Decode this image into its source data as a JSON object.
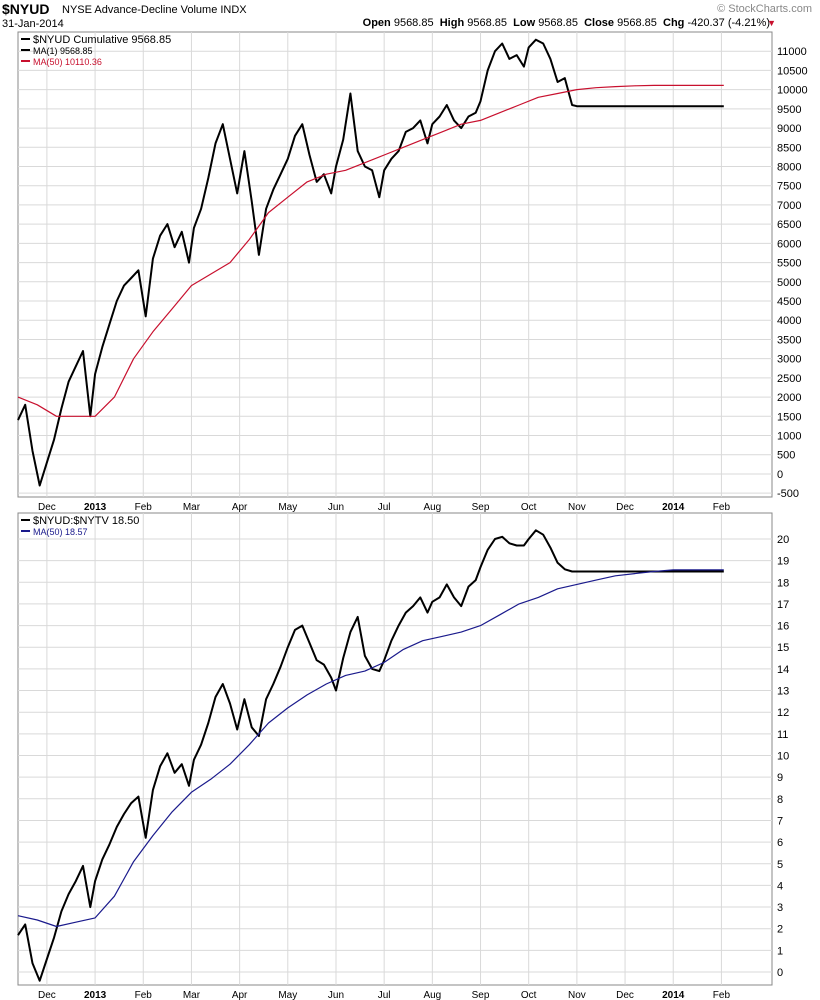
{
  "header": {
    "symbol": "$NYUD",
    "title": "NYSE Advance-Decline Volume  INDX",
    "date": "31-Jan-2014",
    "brand": "© StockCharts.com",
    "open_label": "Open",
    "open": "9568.85",
    "high_label": "High",
    "high": "9568.85",
    "low_label": "Low",
    "low": "9568.85",
    "close_label": "Close",
    "close": "9568.85",
    "chg_label": "Chg",
    "chg": "-420.37 (-4.21%)",
    "chg_icon": "down-triangle-icon"
  },
  "colors": {
    "price": "#000000",
    "ma_top": "#c8102e",
    "ma_bottom": "#1a1a8c",
    "grid": "#d9d9d9"
  },
  "chart_data": [
    {
      "type": "line",
      "legend": [
        "$NYUD Cumulative 9568.85",
        "MA(1) 9568.85",
        "MA(50) 10110.36"
      ],
      "x_tick_labels": [
        "Dec",
        "2013",
        "Feb",
        "Mar",
        "Apr",
        "May",
        "Jun",
        "Jul",
        "Aug",
        "Sep",
        "Oct",
        "Nov",
        "Dec",
        "2014",
        "Feb"
      ],
      "y_ticks": [
        -500,
        0,
        500,
        1000,
        1500,
        2000,
        2500,
        3000,
        3500,
        4000,
        4500,
        5000,
        5500,
        6000,
        6500,
        7000,
        7500,
        8000,
        8500,
        9000,
        9500,
        10000,
        10500,
        11000
      ],
      "ylim": [
        -600,
        11500
      ],
      "x_months": [
        -1.6,
        14.05
      ],
      "series": [
        {
          "name": "$NYUD Cumulative",
          "x": [
            -1.6,
            -1.45,
            -1.3,
            -1.15,
            -1.0,
            -0.85,
            -0.7,
            -0.55,
            -0.4,
            -0.25,
            -0.1,
            0.0,
            0.15,
            0.3,
            0.45,
            0.6,
            0.75,
            0.9,
            1.05,
            1.2,
            1.35,
            1.5,
            1.65,
            1.8,
            1.95,
            2.05,
            2.2,
            2.35,
            2.5,
            2.65,
            2.8,
            2.95,
            3.1,
            3.25,
            3.4,
            3.55,
            3.7,
            3.85,
            4.0,
            4.15,
            4.3,
            4.45,
            4.6,
            4.75,
            4.9,
            5.0,
            5.15,
            5.3,
            5.45,
            5.6,
            5.75,
            5.9,
            6.0,
            6.15,
            6.3,
            6.45,
            6.6,
            6.75,
            6.9,
            7.0,
            7.15,
            7.3,
            7.45,
            7.6,
            7.75,
            7.9,
            8.0,
            8.15,
            8.3,
            8.45,
            8.6,
            8.75,
            8.9,
            9.0,
            9.15,
            9.3,
            9.45,
            9.6,
            9.75,
            9.9,
            10.0,
            10.15,
            10.3,
            10.45,
            10.6,
            10.75,
            10.9,
            11.0,
            11.15,
            11.3,
            11.45,
            11.6,
            11.75,
            11.9,
            12.0,
            12.1,
            12.2,
            12.3,
            12.4,
            12.5,
            12.6,
            12.7,
            12.8,
            12.9,
            13.0,
            13.05
          ],
          "values": [
            1400,
            1800,
            600,
            -300,
            300,
            900,
            1700,
            2400,
            2800,
            3200,
            1500,
            2600,
            3300,
            3900,
            4500,
            4900,
            5100,
            5300,
            4100,
            5600,
            6200,
            6500,
            5900,
            6300,
            5500,
            6400,
            6900,
            7700,
            8600,
            9100,
            8200,
            7300,
            8400,
            7100,
            5700,
            6900,
            7400,
            7800,
            8200,
            8800,
            9100,
            8300,
            7600,
            7800,
            7300,
            8000,
            8700,
            9900,
            8400,
            8000,
            7900,
            7200,
            7900,
            8200,
            8400,
            8900,
            9000,
            9200,
            8600,
            9100,
            9300,
            9600,
            9200,
            9000,
            9300,
            9400,
            9700,
            10500,
            11000,
            11200,
            10800,
            10900,
            10600,
            11100,
            11300,
            11200,
            10800,
            10200,
            10300,
            9600,
            9568.85,
            9568.85,
            9568.85,
            9568.85,
            9568.85,
            9568.85,
            9568.85,
            9568.85,
            9568.85,
            9568.85,
            9568.85,
            9568.85,
            9568.85,
            9568.85,
            9568.85,
            9568.85,
            9568.85,
            9568.85,
            9568.85,
            9568.85,
            9568.85,
            9568.85,
            9568.85,
            9568.85,
            9568.85,
            9568.85
          ]
        },
        {
          "name": "MA(50)",
          "x": [
            -1.6,
            -1.2,
            -0.8,
            -0.4,
            0.0,
            0.4,
            0.8,
            1.2,
            1.6,
            2.0,
            2.4,
            2.8,
            3.2,
            3.6,
            4.0,
            4.4,
            4.8,
            5.2,
            5.6,
            6.0,
            6.4,
            6.8,
            7.2,
            7.6,
            8.0,
            8.4,
            8.8,
            9.2,
            9.6,
            10.0,
            10.4,
            10.8,
            11.2,
            11.6,
            12.0,
            12.4,
            12.8,
            13.05
          ],
          "values": [
            2000,
            1800,
            1500,
            1500,
            1500,
            2000,
            3000,
            3700,
            4300,
            4900,
            5200,
            5500,
            6100,
            6800,
            7200,
            7600,
            7800,
            7900,
            8100,
            8300,
            8500,
            8700,
            8900,
            9100,
            9200,
            9400,
            9600,
            9800,
            9900,
            10000,
            10050,
            10080,
            10100,
            10110,
            10110.36,
            10110.36,
            10110.36,
            10110.36
          ]
        }
      ]
    },
    {
      "type": "line",
      "legend": [
        "$NYUD:$NYTV 18.50",
        "MA(50) 18.57"
      ],
      "x_tick_labels": [
        "Dec",
        "2013",
        "Feb",
        "Mar",
        "Apr",
        "May",
        "Jun",
        "Jul",
        "Aug",
        "Sep",
        "Oct",
        "Nov",
        "Dec",
        "2014",
        "Feb"
      ],
      "y_ticks": [
        0,
        1,
        2,
        3,
        4,
        5,
        6,
        7,
        8,
        9,
        10,
        11,
        12,
        13,
        14,
        15,
        16,
        17,
        18,
        19,
        20
      ],
      "ylim": [
        -0.6,
        21.2
      ],
      "x_months": [
        -1.6,
        14.05
      ],
      "series": [
        {
          "name": "$NYUD:$NYTV",
          "x": [
            -1.6,
            -1.45,
            -1.3,
            -1.15,
            -1.0,
            -0.85,
            -0.7,
            -0.55,
            -0.4,
            -0.25,
            -0.1,
            0.0,
            0.15,
            0.3,
            0.45,
            0.6,
            0.75,
            0.9,
            1.05,
            1.2,
            1.35,
            1.5,
            1.65,
            1.8,
            1.95,
            2.05,
            2.2,
            2.35,
            2.5,
            2.65,
            2.8,
            2.95,
            3.1,
            3.25,
            3.4,
            3.55,
            3.7,
            3.85,
            4.0,
            4.15,
            4.3,
            4.45,
            4.6,
            4.75,
            4.9,
            5.0,
            5.15,
            5.3,
            5.45,
            5.6,
            5.75,
            5.9,
            6.0,
            6.15,
            6.3,
            6.45,
            6.6,
            6.75,
            6.9,
            7.0,
            7.15,
            7.3,
            7.45,
            7.6,
            7.75,
            7.9,
            8.0,
            8.15,
            8.3,
            8.45,
            8.6,
            8.75,
            8.9,
            9.0,
            9.15,
            9.3,
            9.45,
            9.6,
            9.75,
            9.9,
            10.0,
            10.15,
            10.3,
            10.45,
            10.6,
            10.75,
            10.9,
            11.0,
            11.15,
            11.3,
            11.45,
            11.6,
            11.75,
            11.9,
            12.0,
            12.1,
            12.2,
            12.3,
            12.4,
            12.5,
            12.6,
            12.7,
            12.8,
            12.9,
            13.0,
            13.05
          ],
          "values": [
            1.7,
            2.2,
            0.4,
            -0.4,
            0.6,
            1.6,
            2.8,
            3.6,
            4.2,
            4.9,
            3.0,
            4.2,
            5.2,
            5.9,
            6.7,
            7.3,
            7.8,
            8.1,
            6.2,
            8.4,
            9.5,
            10.1,
            9.2,
            9.6,
            8.6,
            9.8,
            10.5,
            11.5,
            12.7,
            13.3,
            12.4,
            11.2,
            12.6,
            11.3,
            10.9,
            12.6,
            13.3,
            14.1,
            15.0,
            15.8,
            16.0,
            15.2,
            14.4,
            14.2,
            13.6,
            13.0,
            14.5,
            15.7,
            16.4,
            14.6,
            14.0,
            13.9,
            14.4,
            15.3,
            16.0,
            16.6,
            16.9,
            17.3,
            16.6,
            17.1,
            17.3,
            17.9,
            17.3,
            16.9,
            17.8,
            18.1,
            18.7,
            19.5,
            20.0,
            20.1,
            19.8,
            19.7,
            19.7,
            20.0,
            20.4,
            20.2,
            19.6,
            18.9,
            18.6,
            18.5,
            18.5,
            18.5,
            18.5,
            18.5,
            18.5,
            18.5,
            18.5,
            18.5,
            18.5,
            18.5,
            18.5,
            18.5,
            18.5,
            18.5,
            18.5,
            18.5,
            18.5,
            18.5,
            18.5,
            18.5,
            18.5,
            18.5,
            18.5,
            18.5,
            18.5,
            18.5
          ]
        },
        {
          "name": "MA(50)",
          "x": [
            -1.6,
            -1.2,
            -0.8,
            -0.4,
            0.0,
            0.4,
            0.8,
            1.2,
            1.6,
            2.0,
            2.4,
            2.8,
            3.2,
            3.6,
            4.0,
            4.4,
            4.8,
            5.2,
            5.6,
            6.0,
            6.4,
            6.8,
            7.2,
            7.6,
            8.0,
            8.4,
            8.8,
            9.2,
            9.6,
            10.0,
            10.4,
            10.8,
            11.2,
            11.6,
            12.0,
            12.4,
            12.8,
            13.05
          ],
          "values": [
            2.6,
            2.4,
            2.1,
            2.3,
            2.5,
            3.5,
            5.1,
            6.3,
            7.4,
            8.3,
            8.9,
            9.6,
            10.5,
            11.5,
            12.2,
            12.8,
            13.3,
            13.7,
            13.9,
            14.3,
            14.9,
            15.3,
            15.5,
            15.7,
            16.0,
            16.5,
            17.0,
            17.3,
            17.7,
            17.9,
            18.1,
            18.3,
            18.4,
            18.5,
            18.57,
            18.57,
            18.57,
            18.57
          ]
        }
      ]
    }
  ]
}
